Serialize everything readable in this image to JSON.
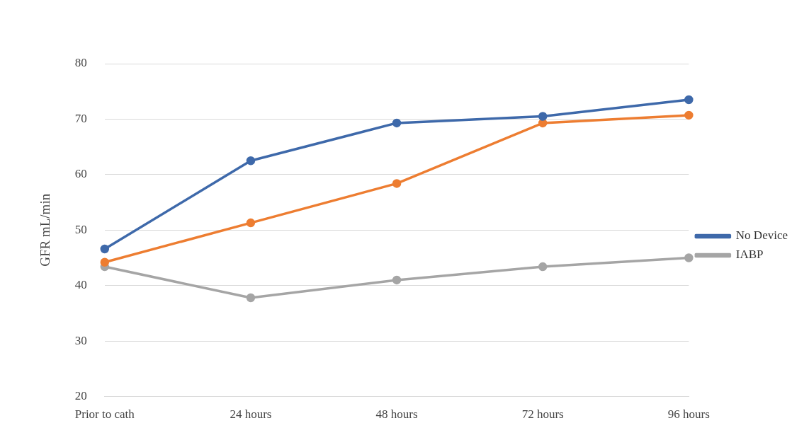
{
  "chart_data": {
    "type": "line",
    "ylabel": "GFR mL/min",
    "categories": [
      "Prior to cath",
      "24 hours",
      "48 hours",
      "72 hours",
      "96 hours"
    ],
    "series": [
      {
        "name": "No Device",
        "color": "#3e69aa",
        "values": [
          46.6,
          62.5,
          69.3,
          70.5,
          73.5
        ]
      },
      {
        "color": "#ed7d31",
        "values": [
          44.2,
          51.3,
          58.4,
          69.3,
          70.7
        ]
      },
      {
        "name": "IABP",
        "color": "#a5a5a5",
        "values": [
          43.4,
          37.8,
          41,
          43.4,
          45
        ]
      }
    ],
    "ylim": [
      20,
      80
    ],
    "yticks": [
      20,
      30,
      40,
      50,
      60,
      70,
      80
    ],
    "grid": "y",
    "legend": "right",
    "marker": "circle",
    "line_style": "solid"
  }
}
